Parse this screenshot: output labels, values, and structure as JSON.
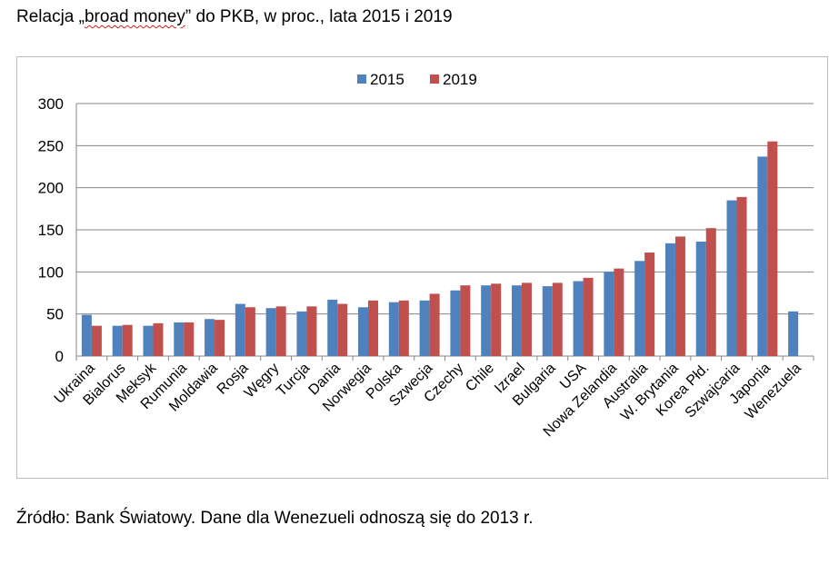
{
  "title_parts": {
    "before": "Relacja „",
    "squiggle": "broad money",
    "after": "” do PKB, w proc., lata 2015 i 2019"
  },
  "source": "Źródło: Bank Światowy. Dane dla Wenezueli odnoszą się do 2013 r.",
  "chart_data": {
    "type": "bar",
    "title": "",
    "xlabel": "",
    "ylabel": "",
    "ylim": [
      0,
      300
    ],
    "yticks": [
      0,
      50,
      100,
      150,
      200,
      250,
      300
    ],
    "grid": true,
    "legend_position": "top-center",
    "categories": [
      "Ukraina",
      "Bialorus",
      "Meksyk",
      "Rumunia",
      "Moldawia",
      "Rosja",
      "Węgry",
      "Turcja",
      "Dania",
      "Norwegia",
      "Polska",
      "Szwecja",
      "Czechy",
      "Chile",
      "Izrael",
      "Bulgaria",
      "USA",
      "Nowa Zelandia",
      "Australia",
      "W. Brytania",
      "Korea Płd.",
      "Szwajcaria",
      "Japonia",
      "Wenezuela"
    ],
    "series": [
      {
        "name": "2015",
        "color": "#4f81bd",
        "values": [
          49,
          36,
          36,
          40,
          44,
          62,
          57,
          53,
          67,
          58,
          64,
          66,
          78,
          84,
          84,
          83,
          89,
          100,
          113,
          134,
          136,
          185,
          237,
          53
        ]
      },
      {
        "name": "2019",
        "color": "#c0504d",
        "values": [
          36,
          37,
          39,
          40,
          43,
          58,
          59,
          59,
          62,
          66,
          66,
          74,
          84,
          86,
          87,
          87,
          93,
          104,
          123,
          142,
          152,
          189,
          255,
          null
        ]
      }
    ]
  }
}
